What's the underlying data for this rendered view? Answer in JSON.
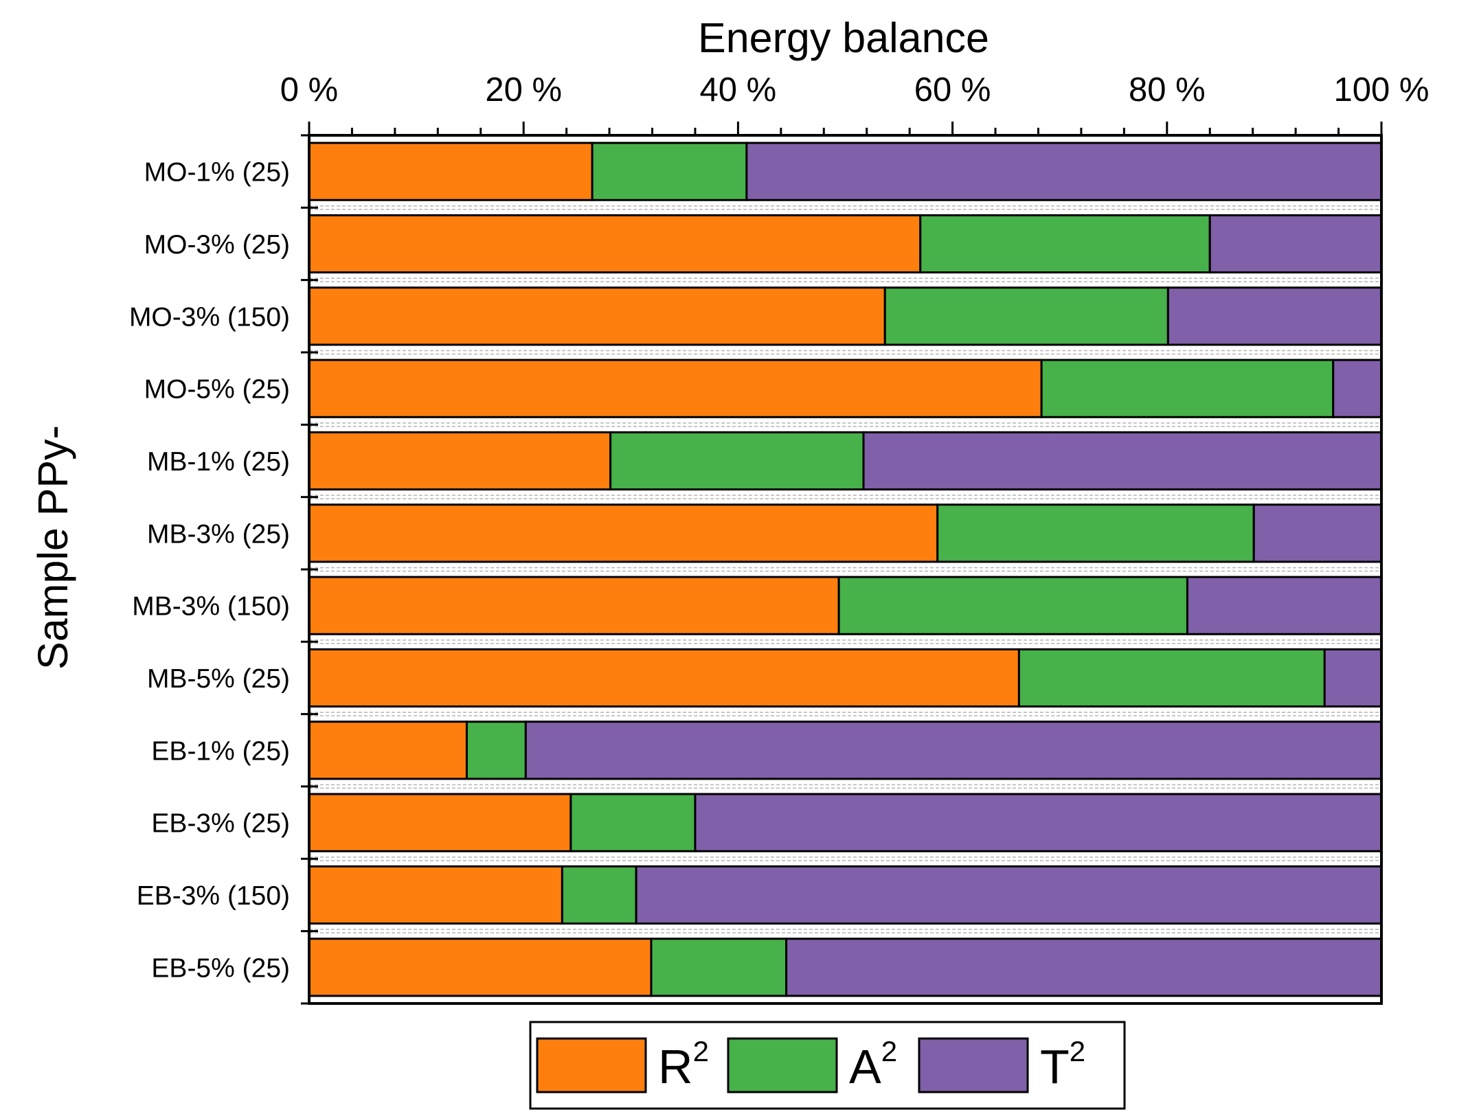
{
  "chart_data": {
    "type": "bar",
    "orientation": "horizontal",
    "stacked": true,
    "title": "Energy balance",
    "ylabel": "Sample PPy-",
    "xlim": [
      0,
      100
    ],
    "x_ticks": [
      "0 %",
      "20 %",
      "40 %",
      "60 %",
      "80 %",
      "100 %"
    ],
    "x_tick_values": [
      0,
      20,
      40,
      60,
      80,
      100
    ],
    "x_minor_step": 4,
    "axis_position": "top",
    "categories": [
      "MO-1% (25)",
      "MO-3% (25)",
      "MO-3% (150)",
      "MO-5% (25)",
      "MB-1% (25)",
      "MB-3% (25)",
      "MB-3% (150)",
      "MB-5% (25)",
      "EB-1% (25)",
      "EB-3% (25)",
      "EB-3% (150)",
      "EB-5% (25)"
    ],
    "series": [
      {
        "name": "R",
        "sup": "2",
        "color": "#ff7f0e",
        "values": [
          26.4,
          57.0,
          53.7,
          68.3,
          28.1,
          58.6,
          49.4,
          66.2,
          14.7,
          24.4,
          23.6,
          31.9
        ]
      },
      {
        "name": "A",
        "sup": "2",
        "color": "#47b14a",
        "values": [
          14.4,
          27.0,
          26.4,
          27.2,
          23.6,
          29.5,
          32.5,
          28.5,
          5.5,
          11.6,
          6.9,
          12.6
        ]
      },
      {
        "name": "T",
        "sup": "2",
        "color": "#8060a8",
        "values": [
          59.2,
          16.0,
          19.9,
          4.5,
          48.3,
          11.9,
          18.1,
          5.3,
          79.8,
          64.0,
          69.5,
          55.5
        ]
      }
    ],
    "legend": "bottom-center"
  }
}
